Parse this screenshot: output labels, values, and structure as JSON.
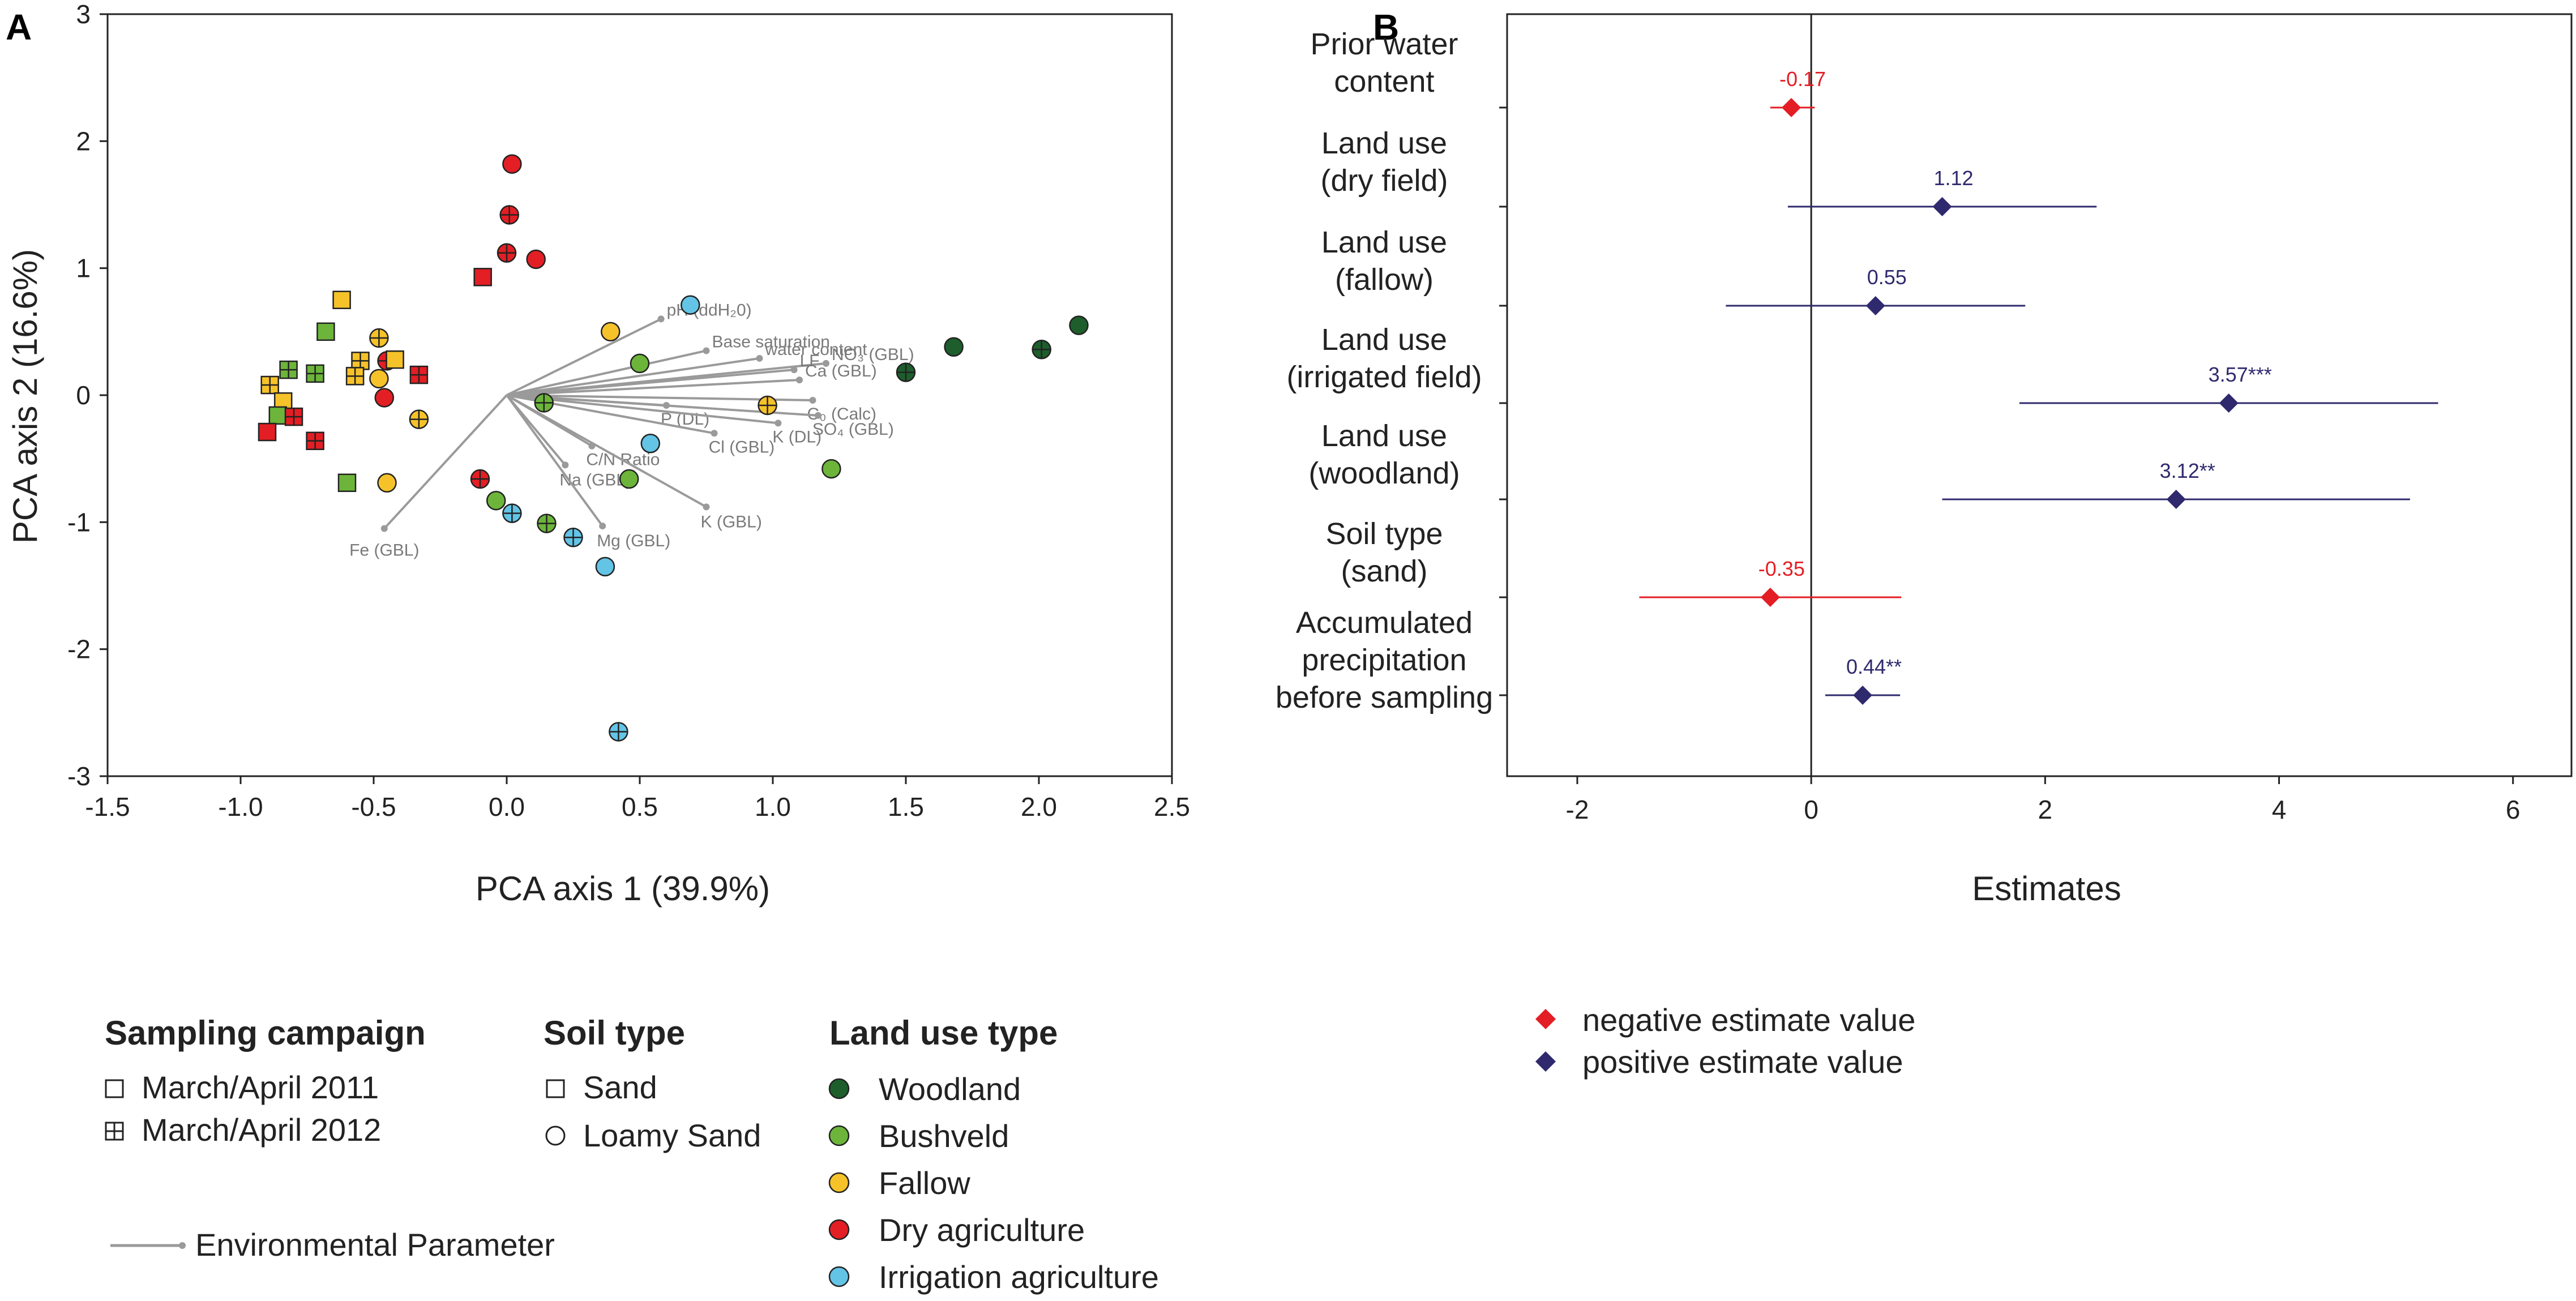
{
  "colors": {
    "woodland": "#1d5e2c",
    "bushveld": "#6cb53a",
    "fallow": "#f6c22a",
    "dry": "#e31e24",
    "irrigation": "#63c4e6",
    "arrow": "#9a9a9a",
    "negative": "#e31e24",
    "positive": "#2f2a6e"
  },
  "chart_data": [
    {
      "panel": "A",
      "type": "scatter",
      "xlabel": "PCA axis 1 (39.9%)",
      "ylabel": "PCA axis 2 (16.6%)",
      "xlim": [
        -1.5,
        2.5
      ],
      "ylim": [
        -3,
        3
      ],
      "xticks": [
        "-1.5",
        "-1.0",
        "-0.5",
        "0.0",
        "0.5",
        "1.0",
        "1.5",
        "2.0",
        "2.5"
      ],
      "yticks": [
        "-3",
        "-2",
        "-1",
        "0",
        "1",
        "2",
        "3"
      ],
      "points": [
        {
          "x": 0.02,
          "y": 1.82,
          "land": "dry",
          "shape": "circle",
          "year": 2011
        },
        {
          "x": 0.01,
          "y": 1.42,
          "land": "dry",
          "shape": "circle",
          "year": 2012
        },
        {
          "x": 0.0,
          "y": 1.12,
          "land": "dry",
          "shape": "circle",
          "year": 2012
        },
        {
          "x": 0.11,
          "y": 1.07,
          "land": "dry",
          "shape": "circle",
          "year": 2011
        },
        {
          "x": -0.09,
          "y": 0.93,
          "land": "dry",
          "shape": "square",
          "year": 2011
        },
        {
          "x": 0.69,
          "y": 0.71,
          "land": "irrigation",
          "shape": "circle",
          "year": 2011
        },
        {
          "x": 0.39,
          "y": 0.5,
          "land": "fallow",
          "shape": "circle",
          "year": 2011
        },
        {
          "x": 0.5,
          "y": 0.25,
          "land": "bushveld",
          "shape": "circle",
          "year": 2011
        },
        {
          "x": 0.14,
          "y": -0.06,
          "land": "bushveld",
          "shape": "circle",
          "year": 2012
        },
        {
          "x": 0.98,
          "y": -0.08,
          "land": "fallow",
          "shape": "circle",
          "year": 2012
        },
        {
          "x": 0.54,
          "y": -0.38,
          "land": "irrigation",
          "shape": "circle",
          "year": 2011
        },
        {
          "x": 0.46,
          "y": -0.66,
          "land": "bushveld",
          "shape": "circle",
          "year": 2011
        },
        {
          "x": 1.22,
          "y": -0.58,
          "land": "bushveld",
          "shape": "circle",
          "year": 2011
        },
        {
          "x": 1.5,
          "y": 0.18,
          "land": "woodland",
          "shape": "circle",
          "year": 2012
        },
        {
          "x": 1.68,
          "y": 0.38,
          "land": "woodland",
          "shape": "circle",
          "year": 2011
        },
        {
          "x": 2.01,
          "y": 0.36,
          "land": "woodland",
          "shape": "circle",
          "year": 2012
        },
        {
          "x": 2.15,
          "y": 0.55,
          "land": "woodland",
          "shape": "circle",
          "year": 2011
        },
        {
          "x": -0.1,
          "y": -0.66,
          "land": "dry",
          "shape": "circle",
          "year": 2012
        },
        {
          "x": -0.04,
          "y": -0.83,
          "land": "bushveld",
          "shape": "circle",
          "year": 2011
        },
        {
          "x": 0.02,
          "y": -0.93,
          "land": "irrigation",
          "shape": "circle",
          "year": 2012
        },
        {
          "x": 0.15,
          "y": -1.01,
          "land": "bushveld",
          "shape": "circle",
          "year": 2012
        },
        {
          "x": 0.25,
          "y": -1.12,
          "land": "irrigation",
          "shape": "circle",
          "year": 2012
        },
        {
          "x": 0.37,
          "y": -1.35,
          "land": "irrigation",
          "shape": "circle",
          "year": 2011
        },
        {
          "x": 0.42,
          "y": -2.65,
          "land": "irrigation",
          "shape": "circle",
          "year": 2012
        },
        {
          "x": -0.62,
          "y": 0.75,
          "land": "fallow",
          "shape": "square",
          "year": 2011
        },
        {
          "x": -0.68,
          "y": 0.5,
          "land": "bushveld",
          "shape": "square",
          "year": 2011
        },
        {
          "x": -0.48,
          "y": 0.45,
          "land": "fallow",
          "shape": "circle",
          "year": 2012
        },
        {
          "x": -0.55,
          "y": 0.27,
          "land": "fallow",
          "shape": "square",
          "year": 2012
        },
        {
          "x": -0.45,
          "y": 0.27,
          "land": "dry",
          "shape": "circle",
          "year": 2012
        },
        {
          "x": -0.42,
          "y": 0.28,
          "land": "fallow",
          "shape": "square",
          "year": 2011
        },
        {
          "x": -0.82,
          "y": 0.2,
          "land": "bushveld",
          "shape": "square",
          "year": 2012
        },
        {
          "x": -0.72,
          "y": 0.17,
          "land": "bushveld",
          "shape": "square",
          "year": 2012
        },
        {
          "x": -0.57,
          "y": 0.15,
          "land": "fallow",
          "shape": "square",
          "year": 2012
        },
        {
          "x": -0.48,
          "y": 0.13,
          "land": "fallow",
          "shape": "circle",
          "year": 2011
        },
        {
          "x": -0.33,
          "y": 0.16,
          "land": "dry",
          "shape": "square",
          "year": 2012
        },
        {
          "x": -0.89,
          "y": 0.08,
          "land": "fallow",
          "shape": "square",
          "year": 2012
        },
        {
          "x": -0.46,
          "y": -0.02,
          "land": "dry",
          "shape": "circle",
          "year": 2011
        },
        {
          "x": -0.84,
          "y": -0.05,
          "land": "fallow",
          "shape": "square",
          "year": 2011
        },
        {
          "x": -0.86,
          "y": -0.16,
          "land": "bushveld",
          "shape": "square",
          "year": 2011
        },
        {
          "x": -0.8,
          "y": -0.17,
          "land": "dry",
          "shape": "square",
          "year": 2012
        },
        {
          "x": -0.33,
          "y": -0.19,
          "land": "fallow",
          "shape": "circle",
          "year": 2012
        },
        {
          "x": -0.9,
          "y": -0.29,
          "land": "dry",
          "shape": "square",
          "year": 2011
        },
        {
          "x": -0.72,
          "y": -0.36,
          "land": "dry",
          "shape": "square",
          "year": 2012
        },
        {
          "x": -0.6,
          "y": -0.69,
          "land": "bushveld",
          "shape": "square",
          "year": 2011
        },
        {
          "x": -0.45,
          "y": -0.69,
          "land": "fallow",
          "shape": "circle",
          "year": 2011
        }
      ],
      "vectors": [
        {
          "label": "pH (ddH₂0)",
          "x": 0.58,
          "y": 0.6
        },
        {
          "label": "Base saturation",
          "x": 0.75,
          "y": 0.35
        },
        {
          "label": "water content",
          "x": 0.95,
          "y": 0.29
        },
        {
          "label": "NO₃ (GBL)",
          "x": 1.2,
          "y": 0.25
        },
        {
          "label": "LF",
          "x": 1.08,
          "y": 0.2
        },
        {
          "label": "Ca (GBL)",
          "x": 1.1,
          "y": 0.12
        },
        {
          "label": "C₀ (Calc)",
          "x": 1.15,
          "y": -0.04
        },
        {
          "label": "P (DL)",
          "x": 0.6,
          "y": -0.08
        },
        {
          "label": "SO₄ (GBL)",
          "x": 1.17,
          "y": -0.16
        },
        {
          "label": "K (DL)",
          "x": 1.02,
          "y": -0.22
        },
        {
          "label": "Cl (GBL)",
          "x": 0.78,
          "y": -0.3
        },
        {
          "label": "C/N Ratio",
          "x": 0.32,
          "y": -0.4
        },
        {
          "label": "Na (GBL)",
          "x": 0.22,
          "y": -0.55
        },
        {
          "label": "K (GBL)",
          "x": 0.75,
          "y": -0.88
        },
        {
          "label": "Mg (GBL)",
          "x": 0.36,
          "y": -1.03
        },
        {
          "label": "Fe (GBL)",
          "x": -0.46,
          "y": -1.05
        }
      ]
    },
    {
      "panel": "B",
      "type": "scatter",
      "xlabel": "Estimates",
      "xlim": [
        -2.6,
        6.5
      ],
      "xticks": [
        "-2",
        "0",
        "2",
        "4",
        "6"
      ],
      "rows": [
        {
          "lines": [
            "Prior water",
            "content"
          ],
          "estimate": -0.17,
          "label": "-0.17",
          "low": -0.35,
          "high": 0.03,
          "sign": "negative"
        },
        {
          "lines": [
            "Land use",
            "(dry field)"
          ],
          "estimate": 1.12,
          "label": "1.12",
          "low": -0.2,
          "high": 2.44,
          "sign": "positive"
        },
        {
          "lines": [
            "Land use",
            "(fallow)"
          ],
          "estimate": 0.55,
          "label": "0.55",
          "low": -0.73,
          "high": 1.83,
          "sign": "positive"
        },
        {
          "lines": [
            "Land use",
            "(irrigated field)"
          ],
          "estimate": 3.57,
          "label": "3.57***",
          "low": 1.78,
          "high": 5.36,
          "sign": "positive"
        },
        {
          "lines": [
            "Land use",
            "(woodland)"
          ],
          "estimate": 3.12,
          "label": "3.12**",
          "low": 1.12,
          "high": 5.12,
          "sign": "positive"
        },
        {
          "lines": [
            "Soil type",
            "(sand)"
          ],
          "estimate": -0.35,
          "label": "-0.35",
          "low": -1.47,
          "high": 0.77,
          "sign": "negative"
        },
        {
          "lines": [
            "Accumulated",
            "precipitation",
            "before sampling"
          ],
          "estimate": 0.44,
          "label": "0.44**",
          "low": 0.12,
          "high": 0.76,
          "sign": "positive"
        }
      ]
    }
  ],
  "panelA": {
    "letter": "A"
  },
  "panelB": {
    "letter": "B"
  },
  "legendA": {
    "sampling_title": "Sampling campaign",
    "sampling_items": [
      "March/April 2011",
      "March/April 2012"
    ],
    "soil_title": "Soil type",
    "soil_items": [
      "Sand",
      "Loamy Sand"
    ],
    "land_title": "Land use type",
    "land_items": [
      {
        "key": "woodland",
        "label": "Woodland"
      },
      {
        "key": "bushveld",
        "label": "Bushveld"
      },
      {
        "key": "fallow",
        "label": "Fallow"
      },
      {
        "key": "dry",
        "label": "Dry agriculture"
      },
      {
        "key": "irrigation",
        "label": "Irrigation agriculture"
      }
    ],
    "env_label": "Environmental Parameter"
  },
  "legendB": {
    "negative": "negative estimate value",
    "positive": "positive estimate value"
  }
}
